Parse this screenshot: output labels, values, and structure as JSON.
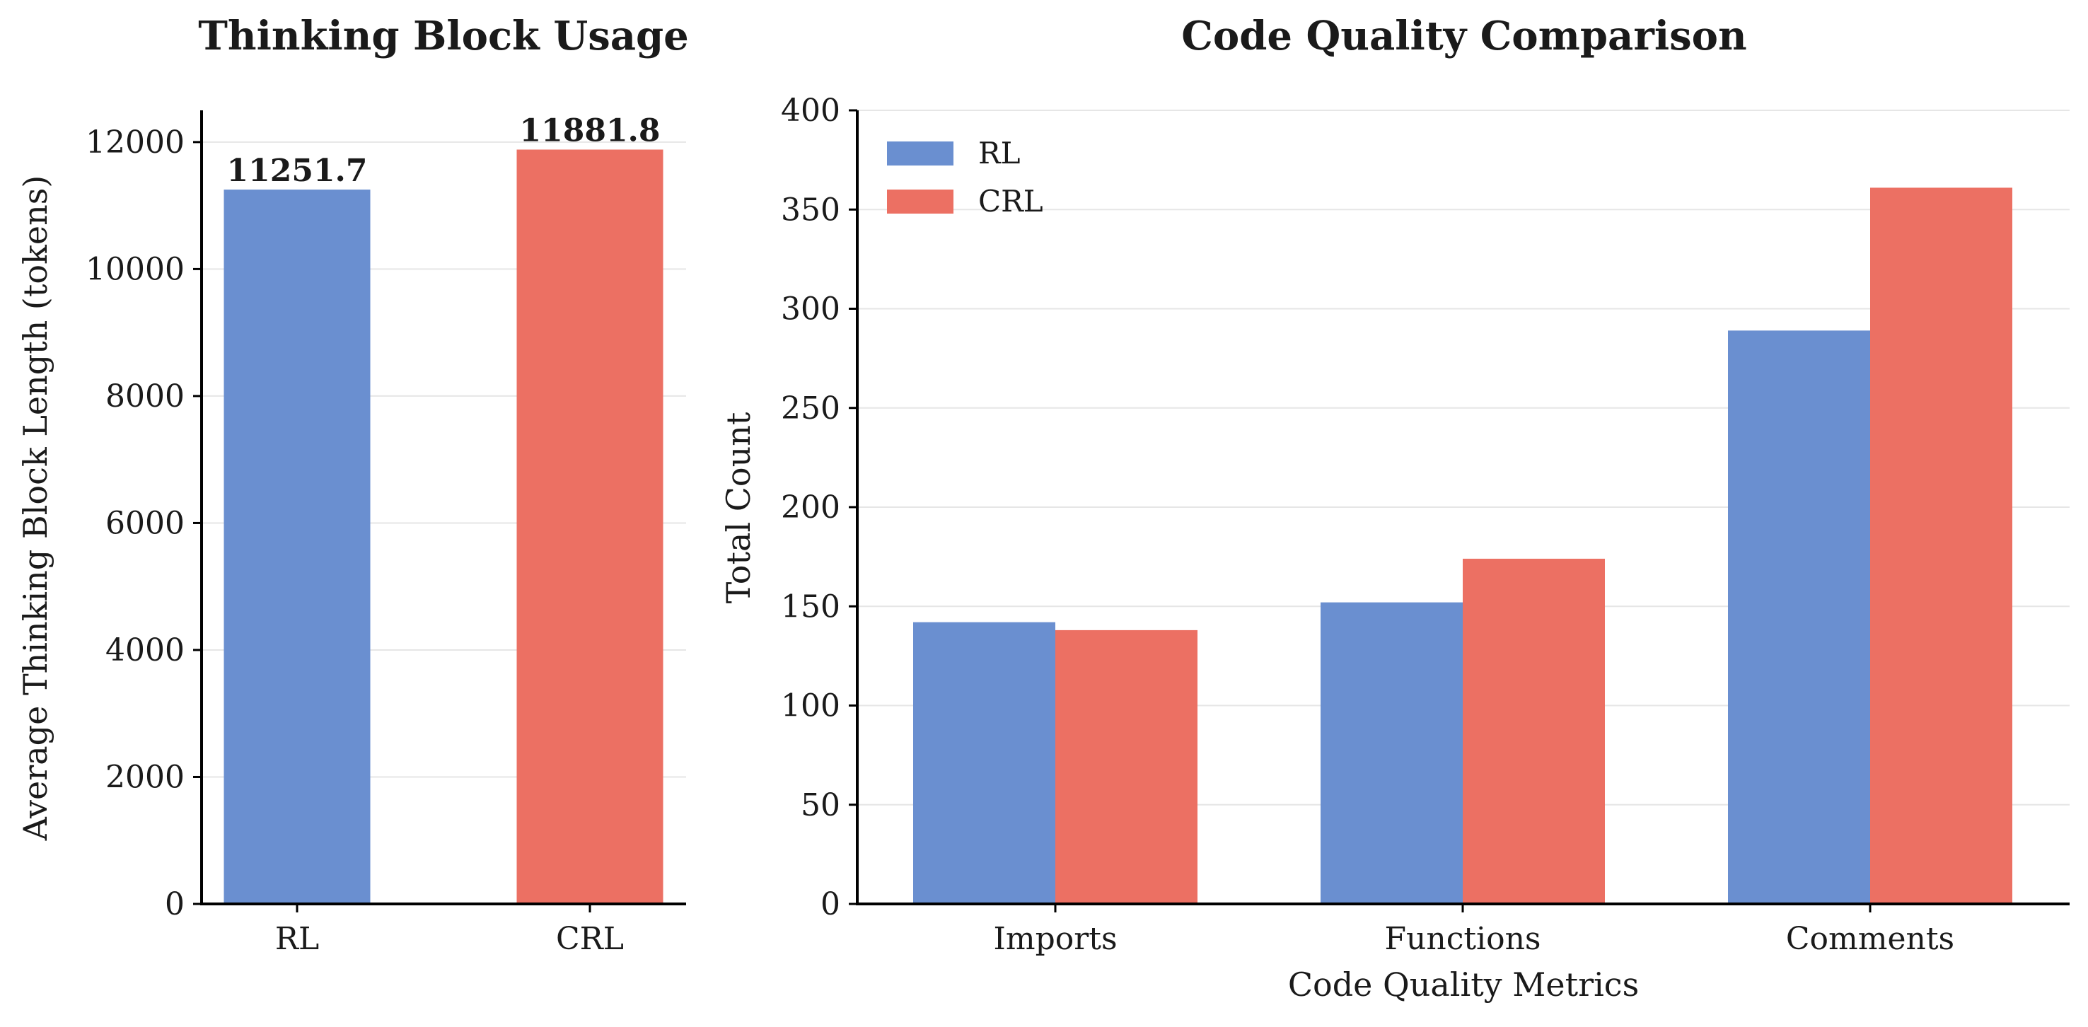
{
  "chart_data": [
    {
      "type": "bar",
      "title": "Thinking Block Usage",
      "xlabel": "",
      "ylabel": "Average Thinking Block Length (tokens)",
      "categories": [
        "RL",
        "CRL"
      ],
      "values": [
        11251.7,
        11881.8
      ],
      "data_labels": [
        "11251.7",
        "11881.8"
      ],
      "colors": [
        "#6a8fd0",
        "#ec7063"
      ],
      "ylim": [
        0,
        12500
      ],
      "yticks": [
        0,
        2000,
        4000,
        6000,
        8000,
        10000,
        12000
      ],
      "grid": true
    },
    {
      "type": "bar",
      "title": "Code Quality Comparison",
      "xlabel": "Code Quality Metrics",
      "ylabel": "Total Count",
      "categories": [
        "Imports",
        "Functions",
        "Comments"
      ],
      "series": [
        {
          "name": "RL",
          "values": [
            142,
            152,
            289
          ],
          "color": "#6a8fd0"
        },
        {
          "name": "CRL",
          "values": [
            138,
            174,
            361
          ],
          "color": "#ec7063"
        }
      ],
      "ylim": [
        0,
        400
      ],
      "yticks": [
        0,
        50,
        100,
        150,
        200,
        250,
        300,
        350,
        400
      ],
      "legend": "top-left",
      "grid": true
    }
  ]
}
